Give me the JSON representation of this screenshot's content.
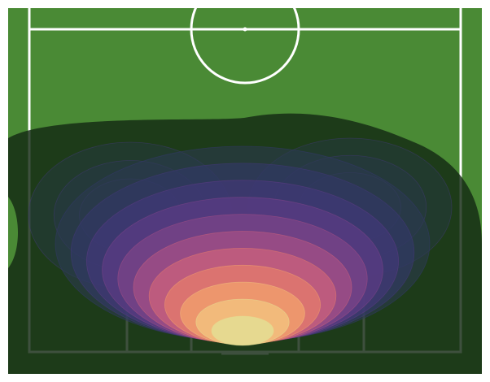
{
  "chart_data": {
    "type": "kde",
    "colors": [
      "#2b3a52",
      "#33396a",
      "#44397a",
      "#5e3c86",
      "#7e4488",
      "#a44f86",
      "#c9607c",
      "#e27a6c",
      "#f09e6c",
      "#f2c07e",
      "#e4dd92"
    ]
  }
}
